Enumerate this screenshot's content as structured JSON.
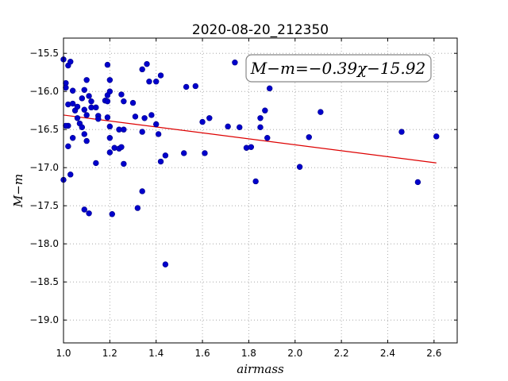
{
  "chart_data": {
    "type": "scatter",
    "title": "2020-08-20_212350",
    "xlabel": "airmass",
    "ylabel": "M−m",
    "xlim": [
      1.0,
      2.7
    ],
    "ylim": [
      -19.3,
      -15.3
    ],
    "y_inverted": true,
    "grid": true,
    "x_ticks": [
      1.0,
      1.2,
      1.4,
      1.6,
      1.8,
      2.0,
      2.2,
      2.4,
      2.6
    ],
    "x_tick_labels": [
      "1.0",
      "1.2",
      "1.4",
      "1.6",
      "1.8",
      "2.0",
      "2.2",
      "2.4",
      "2.6"
    ],
    "y_ticks": [
      -15.5,
      -16.0,
      -16.5,
      -17.0,
      -17.5,
      -18.0,
      -18.5,
      -19.0
    ],
    "y_tick_labels": [
      "−15.5",
      "−16.0",
      "−16.5",
      "−17.0",
      "−17.5",
      "−18.0",
      "−18.5",
      "−19.0"
    ],
    "annotation": "M−m=−0.39χ−15.92",
    "point_color": "#0000cc",
    "fit_color": "#dd0000",
    "fit": {
      "slope": -0.39,
      "intercept": -15.92,
      "x_range": [
        1.0,
        2.61
      ]
    },
    "points": [
      {
        "x": 1.0,
        "y": -15.58
      },
      {
        "x": 1.02,
        "y": -15.66
      },
      {
        "x": 1.03,
        "y": -15.61
      },
      {
        "x": 1.01,
        "y": -15.89
      },
      {
        "x": 1.01,
        "y": -15.95
      },
      {
        "x": 1.04,
        "y": -15.99
      },
      {
        "x": 1.0,
        "y": -17.16
      },
      {
        "x": 1.03,
        "y": -17.09
      },
      {
        "x": 1.02,
        "y": -16.72
      },
      {
        "x": 1.02,
        "y": -16.45
      },
      {
        "x": 1.01,
        "y": -16.45
      },
      {
        "x": 1.02,
        "y": -16.17
      },
      {
        "x": 1.04,
        "y": -16.16
      },
      {
        "x": 1.05,
        "y": -16.25
      },
      {
        "x": 1.04,
        "y": -16.61
      },
      {
        "x": 1.06,
        "y": -16.35
      },
      {
        "x": 1.06,
        "y": -16.2
      },
      {
        "x": 1.07,
        "y": -16.42
      },
      {
        "x": 1.08,
        "y": -16.47
      },
      {
        "x": 1.08,
        "y": -16.09
      },
      {
        "x": 1.09,
        "y": -16.24
      },
      {
        "x": 1.09,
        "y": -16.56
      },
      {
        "x": 1.1,
        "y": -16.65
      },
      {
        "x": 1.1,
        "y": -16.31
      },
      {
        "x": 1.09,
        "y": -15.98
      },
      {
        "x": 1.1,
        "y": -15.85
      },
      {
        "x": 1.11,
        "y": -16.06
      },
      {
        "x": 1.12,
        "y": -16.13
      },
      {
        "x": 1.12,
        "y": -16.21
      },
      {
        "x": 1.14,
        "y": -16.21
      },
      {
        "x": 1.15,
        "y": -16.32
      },
      {
        "x": 1.15,
        "y": -16.36
      },
      {
        "x": 1.14,
        "y": -16.94
      },
      {
        "x": 1.09,
        "y": -17.55
      },
      {
        "x": 1.11,
        "y": -17.6
      },
      {
        "x": 1.18,
        "y": -16.12
      },
      {
        "x": 1.19,
        "y": -16.13
      },
      {
        "x": 1.19,
        "y": -15.65
      },
      {
        "x": 1.2,
        "y": -15.85
      },
      {
        "x": 1.2,
        "y": -16.0
      },
      {
        "x": 1.19,
        "y": -16.05
      },
      {
        "x": 1.19,
        "y": -16.34
      },
      {
        "x": 1.2,
        "y": -16.46
      },
      {
        "x": 1.2,
        "y": -16.61
      },
      {
        "x": 1.2,
        "y": -16.8
      },
      {
        "x": 1.22,
        "y": -16.74
      },
      {
        "x": 1.24,
        "y": -16.75
      },
      {
        "x": 1.24,
        "y": -16.5
      },
      {
        "x": 1.25,
        "y": -16.04
      },
      {
        "x": 1.26,
        "y": -16.13
      },
      {
        "x": 1.26,
        "y": -16.5
      },
      {
        "x": 1.25,
        "y": -16.73
      },
      {
        "x": 1.26,
        "y": -16.95
      },
      {
        "x": 1.21,
        "y": -17.61
      },
      {
        "x": 1.3,
        "y": -16.15
      },
      {
        "x": 1.31,
        "y": -16.33
      },
      {
        "x": 1.34,
        "y": -16.53
      },
      {
        "x": 1.35,
        "y": -16.35
      },
      {
        "x": 1.34,
        "y": -15.71
      },
      {
        "x": 1.36,
        "y": -15.64
      },
      {
        "x": 1.37,
        "y": -15.87
      },
      {
        "x": 1.38,
        "y": -16.31
      },
      {
        "x": 1.4,
        "y": -15.87
      },
      {
        "x": 1.42,
        "y": -15.79
      },
      {
        "x": 1.4,
        "y": -16.43
      },
      {
        "x": 1.41,
        "y": -16.56
      },
      {
        "x": 1.44,
        "y": -16.84
      },
      {
        "x": 1.42,
        "y": -16.92
      },
      {
        "x": 1.34,
        "y": -17.31
      },
      {
        "x": 1.32,
        "y": -17.53
      },
      {
        "x": 1.44,
        "y": -18.27
      },
      {
        "x": 1.53,
        "y": -15.94
      },
      {
        "x": 1.57,
        "y": -15.93
      },
      {
        "x": 1.52,
        "y": -16.81
      },
      {
        "x": 1.6,
        "y": -16.4
      },
      {
        "x": 1.63,
        "y": -16.35
      },
      {
        "x": 1.61,
        "y": -16.81
      },
      {
        "x": 1.71,
        "y": -16.46
      },
      {
        "x": 1.74,
        "y": -15.62
      },
      {
        "x": 1.76,
        "y": -16.47
      },
      {
        "x": 1.79,
        "y": -16.74
      },
      {
        "x": 1.81,
        "y": -16.73
      },
      {
        "x": 1.83,
        "y": -17.18
      },
      {
        "x": 1.85,
        "y": -16.35
      },
      {
        "x": 1.85,
        "y": -16.47
      },
      {
        "x": 1.87,
        "y": -16.25
      },
      {
        "x": 1.88,
        "y": -16.61
      },
      {
        "x": 1.89,
        "y": -15.96
      },
      {
        "x": 2.02,
        "y": -16.99
      },
      {
        "x": 2.06,
        "y": -16.6
      },
      {
        "x": 2.11,
        "y": -16.27
      },
      {
        "x": 2.46,
        "y": -16.53
      },
      {
        "x": 2.53,
        "y": -17.19
      },
      {
        "x": 2.61,
        "y": -16.59
      }
    ]
  }
}
